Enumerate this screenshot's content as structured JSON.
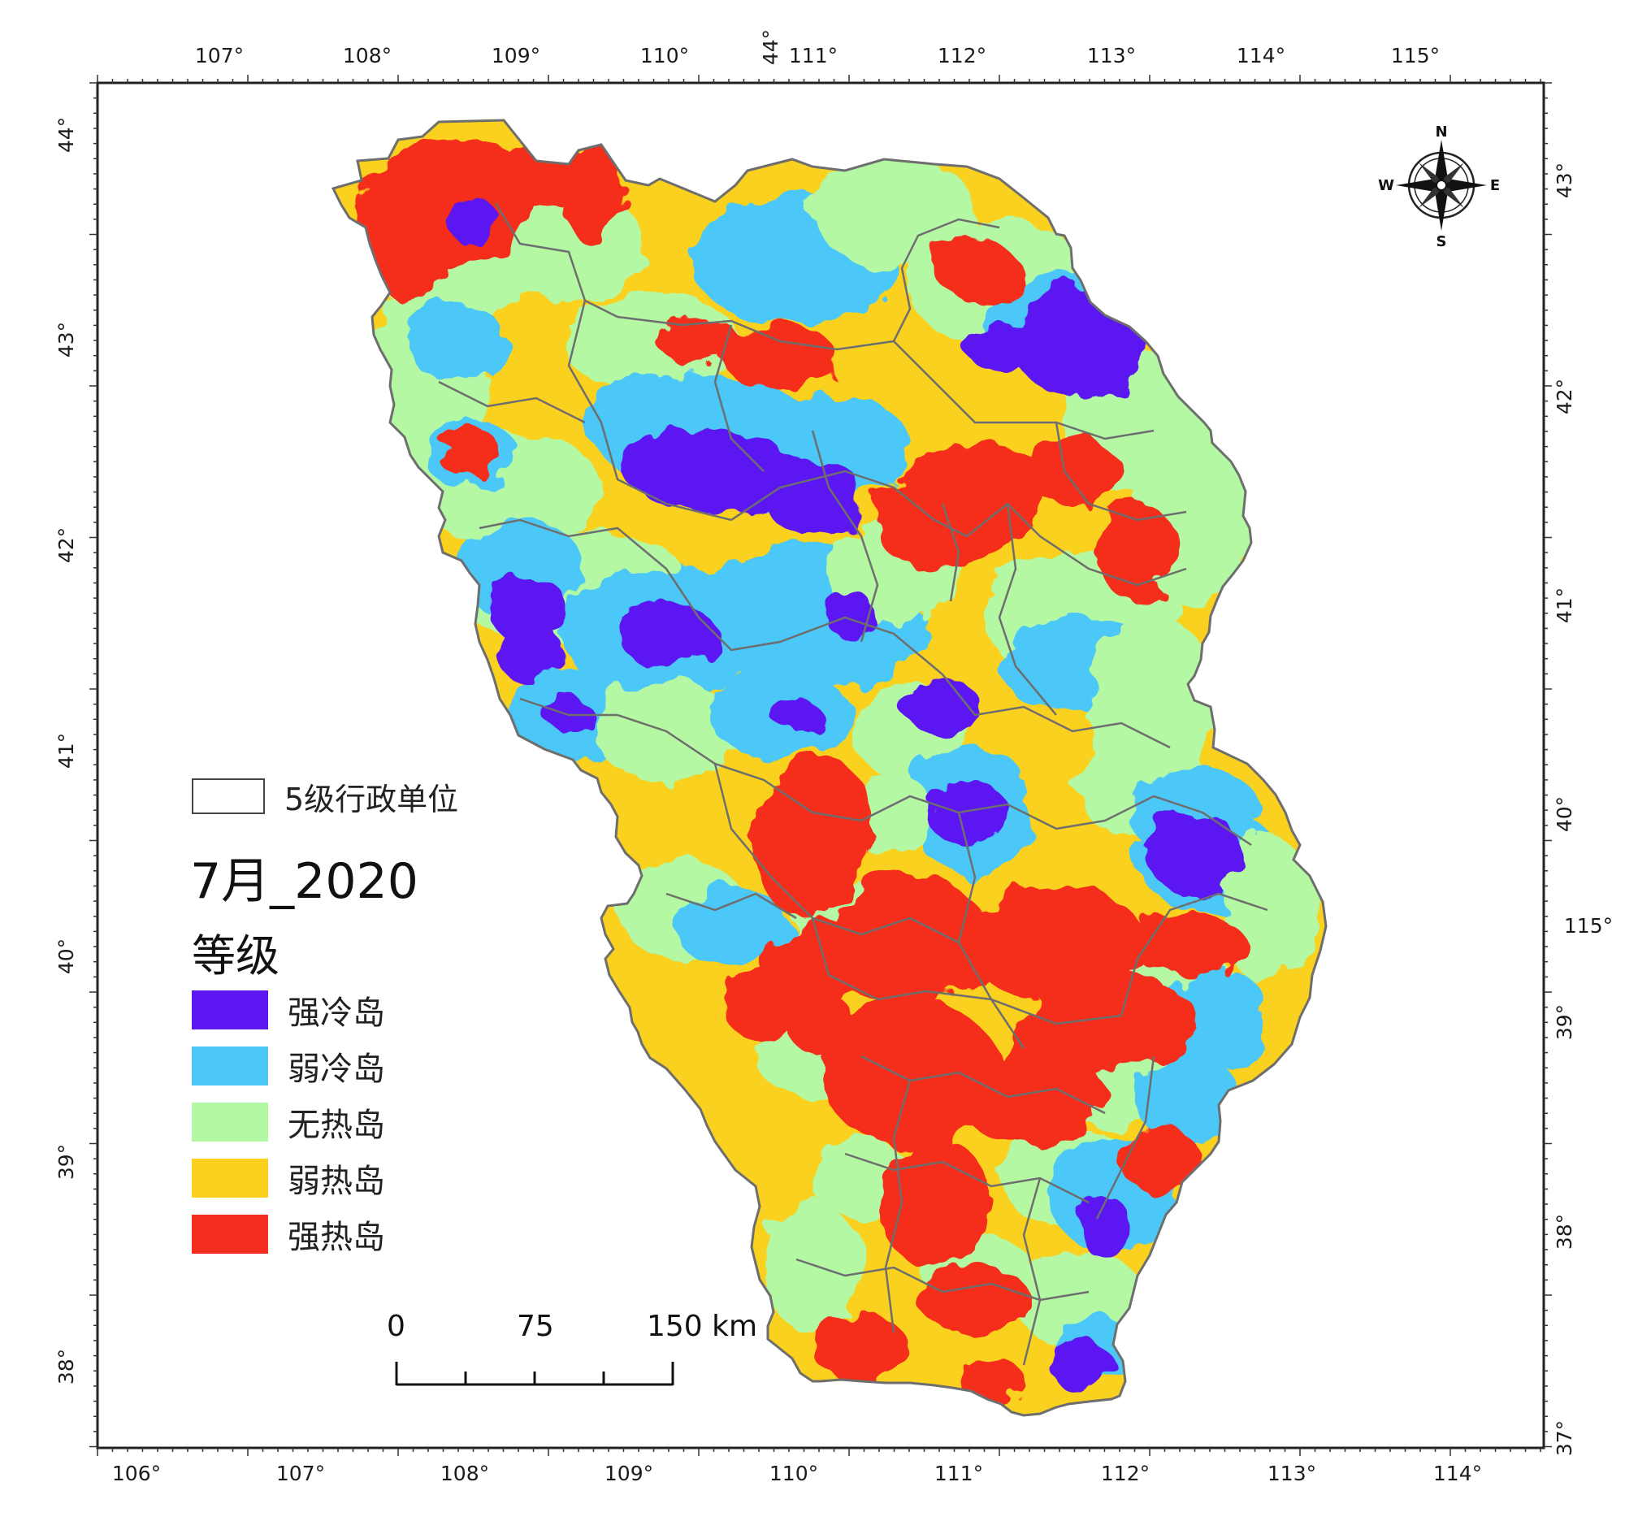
{
  "map": {
    "title": "7月_2020",
    "legend_heading": "等级",
    "boundary_label": "5级行政单位",
    "classes": [
      {
        "label": "强冷岛",
        "color": "#5b16f2"
      },
      {
        "label": "弱冷岛",
        "color": "#4cc8f7"
      },
      {
        "label": "无热岛",
        "color": "#b4f8a4"
      },
      {
        "label": "弱热岛",
        "color": "#f9d11e"
      },
      {
        "label": "强热岛",
        "color": "#f52d1e"
      }
    ],
    "boundary_color": "#6e6e6e",
    "north_arrow": {
      "n": "N",
      "s": "S",
      "e": "E",
      "w": "W",
      "icon": "compass-rose-icon"
    },
    "scale_bar": {
      "labels": [
        "0",
        "75",
        "150 km"
      ]
    },
    "graticule": {
      "top": [
        "107°",
        "108°",
        "109°",
        "110°",
        "111°",
        "112°",
        "113°",
        "114°",
        "115°"
      ],
      "top_extra": "44°",
      "bottom": [
        "106°",
        "107°",
        "108°",
        "109°",
        "110°",
        "111°",
        "112°",
        "113°",
        "114°"
      ],
      "left": [
        "44°",
        "43°",
        "42°",
        "41°",
        "40°",
        "39°",
        "38°"
      ],
      "right": [
        "43°",
        "42°",
        "41°",
        "40°",
        "39°",
        "38°",
        "37°"
      ],
      "right_extra": "115°"
    }
  }
}
